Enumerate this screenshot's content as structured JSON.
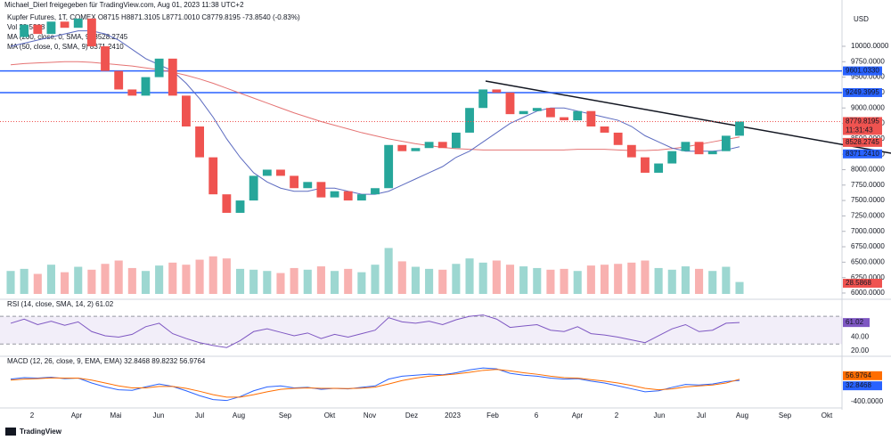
{
  "header": {
    "author": "Michael_Dierl freigegeben für TradingView.com, Aug 01, 2023 11:38 UTC+2",
    "currency": "USD",
    "legend_main": "Kupfer Futures, 1T, COMEX  O8715  H8871.3105  L8771.0010  C8779.8195  -73.8540 (-0.83%)",
    "legend_vol": "Vol  28.5868",
    "legend_ma200": "MA (200, close, 0, SMA, 9)  8528.2745",
    "legend_ma50": "MA (50, close, 0, SMA, 9)  8371.2410",
    "legend_rsi": "RSI (14, close, SMA, 14, 2)  61.02",
    "legend_macd": "MACD (12, 26, close, 9, EMA, EMA)  32.8468  89.8232  56.9764",
    "footer": "TradingView"
  },
  "chart_data": {
    "type": "candlestick",
    "ylim": [
      5913,
      10635
    ],
    "yticks": [
      {
        "value": 6000,
        "label": "6000.0000"
      },
      {
        "value": 6250,
        "label": "6250.0000"
      },
      {
        "value": 6500,
        "label": "6500.0000"
      },
      {
        "value": 6750,
        "label": "6750.0000"
      },
      {
        "value": 7000,
        "label": "7000.0000"
      },
      {
        "value": 7250,
        "label": "7250.0000"
      },
      {
        "value": 7500,
        "label": "7500.0000"
      },
      {
        "value": 7750,
        "label": "7750.0000"
      },
      {
        "value": 8000,
        "label": "8000.0000"
      },
      {
        "value": 8250,
        "label": "8250.0000"
      },
      {
        "value": 8500,
        "label": "8500.0000"
      },
      {
        "value": 8750,
        "label": "8750.0000"
      },
      {
        "value": 9000,
        "label": "9000.0000"
      },
      {
        "value": 9250,
        "label": "9250.0000"
      },
      {
        "value": 9500,
        "label": "9500.0000"
      },
      {
        "value": 9750,
        "label": "9750.0000"
      },
      {
        "value": 10000,
        "label": "10000.0000"
      }
    ],
    "time_labels": [
      "2",
      "Apr",
      "Mai",
      "Jun",
      "Jul",
      "Aug",
      "Sep",
      "Okt",
      "Nov",
      "Dez",
      "2023",
      "Feb",
      "6",
      "Apr",
      "2",
      "Jun",
      "Jul",
      "Aug",
      "Sep",
      "Okt"
    ],
    "levels": [
      {
        "value": 9601.033,
        "label": "9601.0330"
      },
      {
        "value": 9249.3995,
        "label": "9249.3995"
      }
    ],
    "last_price": {
      "value": 8779.8195,
      "label": "8779.8195",
      "countdown": "11:31:43"
    },
    "ma_labels": [
      {
        "value": 8528.2745,
        "label": "8528.2745"
      },
      {
        "value": 8371.241,
        "label": "8371.2410"
      }
    ],
    "series": [
      {
        "name": "Kupfer Futures",
        "up_color": "#26a69a",
        "down_color": "#ef5350",
        "values": [
          10150,
          10350,
          10200,
          10400,
          10300,
          10450,
          10000,
          9600,
          9300,
          9200,
          9500,
          9800,
          9200,
          8700,
          8200,
          7600,
          7300,
          7500,
          7900,
          8000,
          7900,
          7700,
          7800,
          7550,
          7650,
          7500,
          7600,
          7700,
          8400,
          8300,
          8350,
          8450,
          8350,
          8600,
          9000,
          9300,
          9250,
          8900,
          8950,
          9000,
          8850,
          8800,
          8950,
          8700,
          8600,
          8400,
          8200,
          7950,
          8100,
          8300,
          8450,
          8250,
          8300,
          8550,
          8779.8195
        ]
      },
      {
        "name": "MA 200",
        "color": "#e57373",
        "values": [
          9700,
          9720,
          9730,
          9740,
          9750,
          9750,
          9740,
          9720,
          9700,
          9680,
          9650,
          9620,
          9580,
          9530,
          9470,
          9400,
          9320,
          9240,
          9160,
          9080,
          9000,
          8920,
          8850,
          8780,
          8720,
          8660,
          8600,
          8550,
          8500,
          8460,
          8420,
          8390,
          8360,
          8340,
          8330,
          8320,
          8320,
          8320,
          8320,
          8320,
          8320,
          8320,
          8330,
          8330,
          8330,
          8320,
          8310,
          8310,
          8320,
          8340,
          8370,
          8410,
          8450,
          8490,
          8528.2745
        ]
      },
      {
        "name": "MA 50",
        "color": "#5c6bc0",
        "values": [
          10000,
          10050,
          10100,
          10150,
          10200,
          10250,
          10250,
          10200,
          10100,
          9950,
          9800,
          9700,
          9600,
          9400,
          9150,
          8850,
          8500,
          8200,
          7950,
          7800,
          7700,
          7650,
          7650,
          7700,
          7700,
          7650,
          7600,
          7600,
          7650,
          7750,
          7850,
          7950,
          8050,
          8200,
          8300,
          8450,
          8600,
          8750,
          8850,
          8950,
          9000,
          9000,
          8950,
          8900,
          8850,
          8800,
          8700,
          8550,
          8450,
          8350,
          8300,
          8300,
          8300,
          8320,
          8371.241
        ]
      }
    ],
    "volume": {
      "ylim": [
        0,
        160
      ],
      "label": "28.5868",
      "values": [
        55,
        60,
        48,
        70,
        52,
        65,
        58,
        72,
        80,
        62,
        55,
        68,
        75,
        70,
        82,
        90,
        85,
        60,
        58,
        55,
        50,
        62,
        58,
        66,
        55,
        60,
        52,
        70,
        110,
        78,
        65,
        60,
        58,
        72,
        85,
        75,
        80,
        70,
        66,
        62,
        58,
        60,
        55,
        68,
        70,
        72,
        75,
        80,
        62,
        58,
        66,
        60,
        55,
        65,
        28.5868
      ]
    },
    "rsi": {
      "ylim": [
        15,
        83
      ],
      "yticks": [
        {
          "value": 20,
          "label": "20.00"
        },
        {
          "value": 40,
          "label": "40.00"
        }
      ],
      "band": [
        30,
        70
      ],
      "last_label": "61.02",
      "color": "#7e57c2",
      "values": [
        60,
        66,
        58,
        63,
        57,
        62,
        48,
        42,
        40,
        44,
        55,
        60,
        45,
        38,
        32,
        28,
        25,
        35,
        48,
        52,
        47,
        42,
        46,
        38,
        44,
        40,
        45,
        50,
        68,
        62,
        60,
        63,
        58,
        65,
        70,
        72,
        66,
        54,
        56,
        58,
        50,
        48,
        55,
        45,
        43,
        40,
        36,
        32,
        42,
        52,
        58,
        48,
        50,
        60,
        61.02
      ]
    },
    "macd": {
      "ylim": [
        -514,
        438
      ],
      "yticks": [
        {
          "value": -400,
          "label": "-400.0000"
        }
      ],
      "labels": [
        "56.9764",
        "32.8468"
      ],
      "series": [
        {
          "name": "MACD",
          "color": "#2962ff",
          "values": [
            60,
            90,
            80,
            100,
            70,
            80,
            -20,
            -100,
            -160,
            -170,
            -100,
            -40,
            -90,
            -180,
            -280,
            -360,
            -380,
            -300,
            -180,
            -100,
            -80,
            -120,
            -110,
            -150,
            -130,
            -140,
            -110,
            -80,
            60,
            120,
            140,
            160,
            150,
            190,
            250,
            290,
            270,
            180,
            140,
            120,
            80,
            60,
            70,
            20,
            -20,
            -80,
            -140,
            -200,
            -180,
            -110,
            -50,
            -60,
            -40,
            10,
            32.8468
          ]
        },
        {
          "name": "Signal",
          "color": "#ff6d00",
          "values": [
            40,
            60,
            70,
            85,
            80,
            80,
            40,
            -20,
            -80,
            -120,
            -120,
            -90,
            -90,
            -130,
            -190,
            -260,
            -310,
            -310,
            -260,
            -200,
            -150,
            -130,
            -120,
            -130,
            -130,
            -135,
            -125,
            -105,
            -40,
            30,
            80,
            120,
            140,
            165,
            200,
            240,
            260,
            230,
            190,
            160,
            120,
            90,
            80,
            50,
            20,
            -20,
            -70,
            -130,
            -160,
            -140,
            -100,
            -80,
            -60,
            -20,
            56.9764
          ]
        }
      ]
    }
  }
}
